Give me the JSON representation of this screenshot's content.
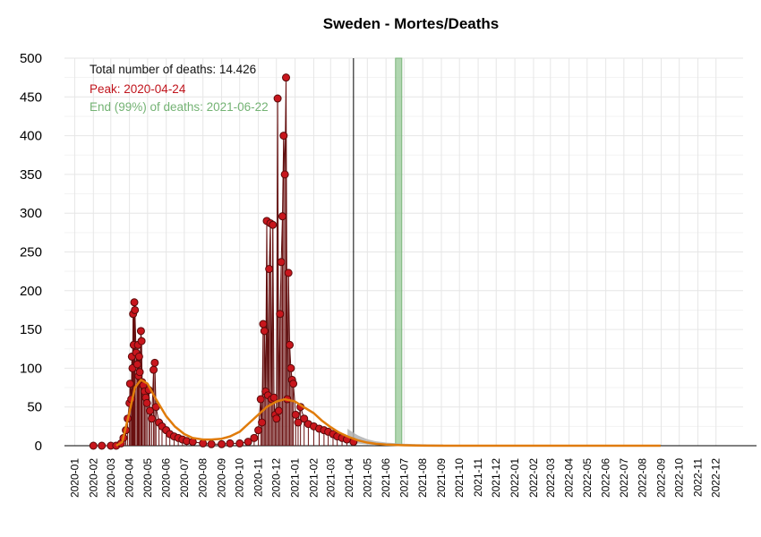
{
  "chart_data": {
    "type": "line",
    "title": "Sweden - Mortes/Deaths",
    "xlabel": "",
    "ylabel": "",
    "ylim": [
      0,
      500
    ],
    "yticks": [
      0,
      50,
      100,
      150,
      200,
      250,
      300,
      350,
      400,
      450,
      500
    ],
    "xlim": [
      "2019-12-15",
      "2023-01-15"
    ],
    "x_tick_labels": [
      "2020-01",
      "2020-02",
      "2020-03",
      "2020-04",
      "2020-05",
      "2020-06",
      "2020-07",
      "2020-08",
      "2020-09",
      "2020-10",
      "2020-11",
      "2020-12",
      "2021-01",
      "2021-02",
      "2021-03",
      "2021-04",
      "2021-05",
      "2021-06",
      "2021-07",
      "2021-08",
      "2021-09",
      "2021-10",
      "2021-11",
      "2021-12",
      "2022-01",
      "2022-02",
      "2022-03",
      "2022-04",
      "2022-05",
      "2022-06",
      "2022-07",
      "2022-08",
      "2022-09",
      "2022-10",
      "2022-11",
      "2022-12"
    ],
    "grid": true,
    "annotations": {
      "total": "Total number of deaths: 14.426",
      "peak": "Peak: 2020-04-24",
      "end": "End (99%) of deaths: 2021-06-22"
    },
    "last_observation_date": "2021-04-08",
    "end_99_date": "2021-06-22",
    "series": [
      {
        "kind": "daily_deaths",
        "points": [
          [
            "2020-02-01",
            0
          ],
          [
            "2020-02-15",
            0
          ],
          [
            "2020-03-01",
            0
          ],
          [
            "2020-03-10",
            0
          ],
          [
            "2020-03-18",
            3
          ],
          [
            "2020-03-22",
            10
          ],
          [
            "2020-03-26",
            20
          ],
          [
            "2020-03-29",
            35
          ],
          [
            "2020-04-01",
            55
          ],
          [
            "2020-04-02",
            80
          ],
          [
            "2020-04-04",
            60
          ],
          [
            "2020-04-05",
            115
          ],
          [
            "2020-04-06",
            100
          ],
          [
            "2020-04-07",
            170
          ],
          [
            "2020-04-08",
            130
          ],
          [
            "2020-04-09",
            185
          ],
          [
            "2020-04-10",
            175
          ],
          [
            "2020-04-12",
            120
          ],
          [
            "2020-04-14",
            105
          ],
          [
            "2020-04-15",
            130
          ],
          [
            "2020-04-16",
            90
          ],
          [
            "2020-04-17",
            115
          ],
          [
            "2020-04-18",
            95
          ],
          [
            "2020-04-20",
            148
          ],
          [
            "2020-04-21",
            135
          ],
          [
            "2020-04-22",
            82
          ],
          [
            "2020-04-24",
            78
          ],
          [
            "2020-04-26",
            70
          ],
          [
            "2020-04-28",
            62
          ],
          [
            "2020-04-30",
            55
          ],
          [
            "2020-05-03",
            72
          ],
          [
            "2020-05-05",
            45
          ],
          [
            "2020-05-08",
            35
          ],
          [
            "2020-05-11",
            98
          ],
          [
            "2020-05-13",
            107
          ],
          [
            "2020-05-15",
            50
          ],
          [
            "2020-05-20",
            30
          ],
          [
            "2020-05-25",
            25
          ],
          [
            "2020-06-01",
            20
          ],
          [
            "2020-06-07",
            15
          ],
          [
            "2020-06-14",
            12
          ],
          [
            "2020-06-21",
            10
          ],
          [
            "2020-06-28",
            8
          ],
          [
            "2020-07-05",
            6
          ],
          [
            "2020-07-15",
            5
          ],
          [
            "2020-08-01",
            3
          ],
          [
            "2020-08-15",
            2
          ],
          [
            "2020-09-01",
            2
          ],
          [
            "2020-09-15",
            3
          ],
          [
            "2020-10-01",
            3
          ],
          [
            "2020-10-15",
            5
          ],
          [
            "2020-10-25",
            10
          ],
          [
            "2020-11-01",
            20
          ],
          [
            "2020-11-05",
            60
          ],
          [
            "2020-11-07",
            30
          ],
          [
            "2020-11-09",
            157
          ],
          [
            "2020-11-11",
            148
          ],
          [
            "2020-11-13",
            70
          ],
          [
            "2020-11-15",
            290
          ],
          [
            "2020-11-17",
            65
          ],
          [
            "2020-11-19",
            228
          ],
          [
            "2020-11-21",
            287
          ],
          [
            "2020-11-23",
            60
          ],
          [
            "2020-11-25",
            285
          ],
          [
            "2020-11-27",
            62
          ],
          [
            "2020-11-29",
            40
          ],
          [
            "2020-12-01",
            35
          ],
          [
            "2020-12-03",
            448
          ],
          [
            "2020-12-05",
            45
          ],
          [
            "2020-12-07",
            170
          ],
          [
            "2020-12-09",
            237
          ],
          [
            "2020-12-11",
            296
          ],
          [
            "2020-12-13",
            400
          ],
          [
            "2020-12-15",
            350
          ],
          [
            "2020-12-17",
            475
          ],
          [
            "2020-12-19",
            60
          ],
          [
            "2020-12-21",
            223
          ],
          [
            "2020-12-23",
            130
          ],
          [
            "2020-12-25",
            100
          ],
          [
            "2020-12-27",
            85
          ],
          [
            "2020-12-29",
            80
          ],
          [
            "2021-01-02",
            40
          ],
          [
            "2021-01-06",
            30
          ],
          [
            "2021-01-10",
            50
          ],
          [
            "2021-01-16",
            35
          ],
          [
            "2021-01-23",
            28
          ],
          [
            "2021-02-01",
            25
          ],
          [
            "2021-02-10",
            22
          ],
          [
            "2021-02-18",
            20
          ],
          [
            "2021-02-25",
            18
          ],
          [
            "2021-03-05",
            15
          ],
          [
            "2021-03-12",
            12
          ],
          [
            "2021-03-20",
            10
          ],
          [
            "2021-03-28",
            8
          ],
          [
            "2021-04-08",
            5
          ]
        ]
      },
      {
        "kind": "fitted_curve",
        "points": [
          [
            "2020-03-10",
            0
          ],
          [
            "2020-03-20",
            5
          ],
          [
            "2020-03-31",
            40
          ],
          [
            "2020-04-10",
            75
          ],
          [
            "2020-04-20",
            85
          ],
          [
            "2020-05-01",
            80
          ],
          [
            "2020-05-15",
            60
          ],
          [
            "2020-06-01",
            38
          ],
          [
            "2020-06-15",
            25
          ],
          [
            "2020-07-01",
            15
          ],
          [
            "2020-07-15",
            10
          ],
          [
            "2020-08-01",
            8
          ],
          [
            "2020-08-15",
            8
          ],
          [
            "2020-09-01",
            9
          ],
          [
            "2020-09-15",
            12
          ],
          [
            "2020-10-01",
            18
          ],
          [
            "2020-10-15",
            28
          ],
          [
            "2020-11-01",
            40
          ],
          [
            "2020-11-15",
            50
          ],
          [
            "2020-12-01",
            57
          ],
          [
            "2020-12-15",
            60
          ],
          [
            "2021-01-01",
            57
          ],
          [
            "2021-01-15",
            50
          ],
          [
            "2021-02-01",
            42
          ],
          [
            "2021-02-15",
            32
          ],
          [
            "2021-03-01",
            24
          ],
          [
            "2021-03-15",
            17
          ],
          [
            "2021-04-01",
            11
          ],
          [
            "2021-04-15",
            7
          ],
          [
            "2021-05-01",
            4
          ],
          [
            "2021-05-15",
            2.5
          ],
          [
            "2021-06-01",
            1.5
          ],
          [
            "2021-07-01",
            0.6
          ],
          [
            "2021-08-01",
            0.2
          ],
          [
            "2021-09-01",
            0.05
          ],
          [
            "2022-08-31",
            0
          ]
        ]
      }
    ]
  }
}
